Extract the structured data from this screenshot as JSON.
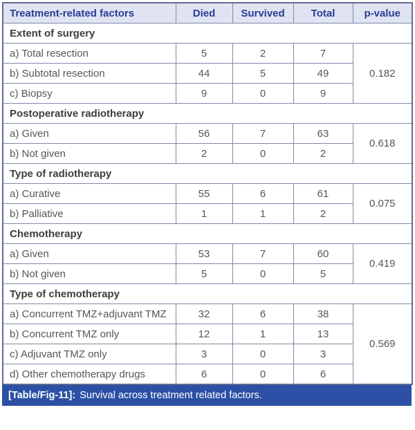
{
  "table": {
    "columns": [
      "Treatment-related factors",
      "Died",
      "Survived",
      "Total",
      "p-value"
    ],
    "sections": [
      {
        "title": "Extent of surgery",
        "p_value": "0.182",
        "rows": [
          {
            "label": "a) Total resection",
            "died": "5",
            "survived": "2",
            "total": "7"
          },
          {
            "label": "b) Subtotal resection",
            "died": "44",
            "survived": "5",
            "total": "49"
          },
          {
            "label": "c) Biopsy",
            "died": "9",
            "survived": "0",
            "total": "9"
          }
        ]
      },
      {
        "title": "Postoperative radiotherapy",
        "p_value": "0.618",
        "rows": [
          {
            "label": "a) Given",
            "died": "56",
            "survived": "7",
            "total": "63"
          },
          {
            "label": "b) Not given",
            "died": "2",
            "survived": "0",
            "total": "2"
          }
        ]
      },
      {
        "title": "Type of radiotherapy",
        "p_value": "0.075",
        "rows": [
          {
            "label": "a) Curative",
            "died": "55",
            "survived": "6",
            "total": "61"
          },
          {
            "label": "b) Palliative",
            "died": "1",
            "survived": "1",
            "total": "2"
          }
        ]
      },
      {
        "title": "Chemotherapy",
        "p_value": "0.419",
        "rows": [
          {
            "label": "a) Given",
            "died": "53",
            "survived": "7",
            "total": "60"
          },
          {
            "label": "b) Not given",
            "died": "5",
            "survived": "0",
            "total": "5"
          }
        ]
      },
      {
        "title": "Type of chemotherapy",
        "p_value": "0.569",
        "rows": [
          {
            "label": "a) Concurrent TMZ+adjuvant TMZ",
            "died": "32",
            "survived": "6",
            "total": "38"
          },
          {
            "label": "b) Concurrent TMZ only",
            "died": "12",
            "survived": "1",
            "total": "13"
          },
          {
            "label": "c) Adjuvant TMZ only",
            "died": "3",
            "survived": "0",
            "total": "3"
          },
          {
            "label": "d) Other chemotherapy drugs",
            "died": "6",
            "survived": "0",
            "total": "6"
          }
        ]
      }
    ]
  },
  "caption": {
    "tag": "[Table/Fig-11]:",
    "text": "Survival across treatment related factors."
  },
  "colors": {
    "header_bg": "#e0e4f2",
    "header_text": "#2b3b92",
    "header_border": "#2e3f8f",
    "grid_line": "#7d89a6",
    "outer_border": "#5f6b92",
    "body_text": "#565656",
    "section_text": "#3d3d3d",
    "caption_bg": "#2b50a5",
    "caption_text": "#ffffff"
  },
  "chart_data": {
    "type": "table",
    "title": "[Table/Fig-11]: Survival across treatment related factors.",
    "columns": [
      "Treatment-related factors",
      "Died",
      "Survived",
      "Total",
      "p-value"
    ],
    "rows": [
      [
        "Extent of surgery",
        "",
        "",
        "",
        ""
      ],
      [
        "a) Total resection",
        5,
        2,
        7,
        0.182
      ],
      [
        "b) Subtotal resection",
        44,
        5,
        49,
        0.182
      ],
      [
        "c) Biopsy",
        9,
        0,
        9,
        0.182
      ],
      [
        "Postoperative radiotherapy",
        "",
        "",
        "",
        ""
      ],
      [
        "a) Given",
        56,
        7,
        63,
        0.618
      ],
      [
        "b) Not given",
        2,
        0,
        2,
        0.618
      ],
      [
        "Type of radiotherapy",
        "",
        "",
        "",
        ""
      ],
      [
        "a) Curative",
        55,
        6,
        61,
        0.075
      ],
      [
        "b) Palliative",
        1,
        1,
        2,
        0.075
      ],
      [
        "Chemotherapy",
        "",
        "",
        "",
        ""
      ],
      [
        "a) Given",
        53,
        7,
        60,
        0.419
      ],
      [
        "b) Not given",
        5,
        0,
        5,
        0.419
      ],
      [
        "Type of chemotherapy",
        "",
        "",
        "",
        ""
      ],
      [
        "a) Concurrent TMZ+adjuvant TMZ",
        32,
        6,
        38,
        0.569
      ],
      [
        "b) Concurrent TMZ only",
        12,
        1,
        13,
        0.569
      ],
      [
        "c) Adjuvant TMZ only",
        3,
        0,
        3,
        0.569
      ],
      [
        "d) Other chemotherapy drugs",
        6,
        0,
        6,
        0.569
      ]
    ]
  }
}
